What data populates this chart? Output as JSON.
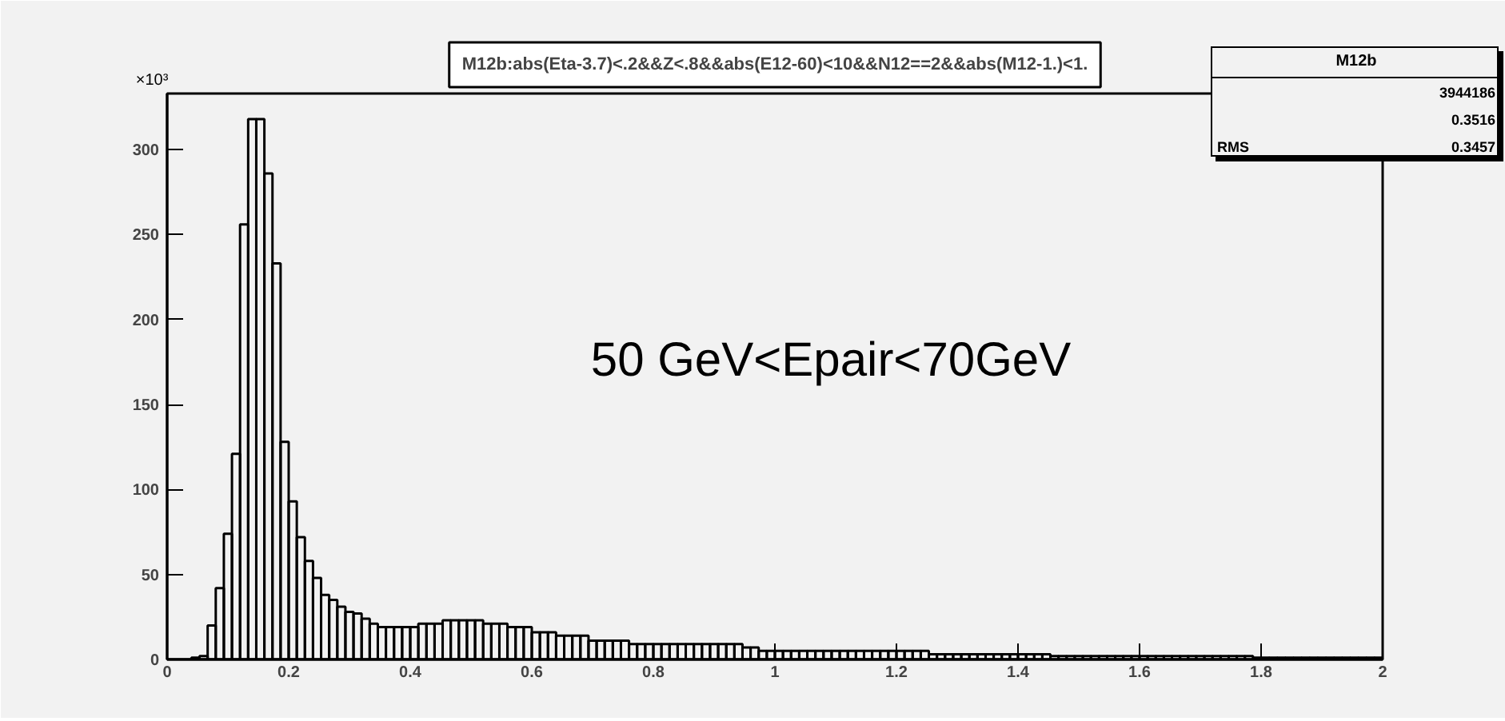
{
  "chart_data": {
    "type": "histogram",
    "title": "M12b:abs(Eta-3.7)<.2&&Z<.8&&abs(E12-60)<10&&N12==2&&abs(M12-1.)<1.",
    "bins": [
      0,
      0.01333,
      0.02667,
      0.04,
      0.05333,
      0.06667,
      0.08,
      0.09333,
      0.10667,
      0.12,
      0.13333,
      0.14667,
      0.16,
      0.17333,
      0.18667,
      0.2,
      0.21333,
      0.22667,
      0.24,
      0.25333,
      0.26667,
      0.28,
      0.29333,
      0.30667,
      0.32,
      0.33333,
      0.34667,
      0.36,
      0.37333,
      0.38667,
      0.4,
      0.41333,
      0.42667,
      0.44,
      0.45333,
      0.46667,
      0.48,
      0.49333,
      0.50667,
      0.52,
      0.53333,
      0.54667,
      0.56,
      0.57333,
      0.58667,
      0.6,
      0.61333,
      0.62667,
      0.64,
      0.65333,
      0.66667,
      0.68,
      0.69333,
      0.70667,
      0.72,
      0.73333,
      0.74667,
      0.76,
      0.77333,
      0.78667,
      0.8,
      0.81333,
      0.82667,
      0.84,
      0.85333,
      0.86667,
      0.88,
      0.89333,
      0.90667,
      0.92,
      0.93333,
      0.94667,
      0.96,
      0.97333,
      0.98667,
      1,
      1.01333,
      1.02667,
      1.04,
      1.05333,
      1.06667,
      1.08,
      1.09333,
      1.10667,
      1.12,
      1.13333,
      1.14667,
      1.16,
      1.17333,
      1.18667,
      1.2,
      1.21333,
      1.22667,
      1.24,
      1.25333,
      1.26667,
      1.28,
      1.29333,
      1.30667,
      1.32,
      1.33333,
      1.34667,
      1.36,
      1.37333,
      1.38667,
      1.4,
      1.41333,
      1.42667,
      1.44,
      1.45333,
      1.46667,
      1.48,
      1.49333,
      1.50667,
      1.52,
      1.53333,
      1.54667,
      1.56,
      1.57333,
      1.58667,
      1.6,
      1.61333,
      1.62667,
      1.64,
      1.65333,
      1.66667,
      1.68,
      1.69333,
      1.70667,
      1.72,
      1.73333,
      1.74667,
      1.76,
      1.77333,
      1.78667,
      1.8,
      1.81333,
      1.82667,
      1.84,
      1.85333,
      1.86667,
      1.88,
      1.89333,
      1.90667,
      1.92,
      1.93333,
      1.94667,
      1.96,
      1.97333,
      1.98667,
      2
    ],
    "values": [
      0,
      0,
      0,
      1,
      2,
      20,
      42,
      74,
      121,
      256,
      318,
      318,
      286,
      233,
      128,
      93,
      72,
      58,
      48,
      38,
      35,
      31,
      28,
      27,
      24,
      21,
      19,
      19,
      19,
      19,
      19,
      21,
      21,
      21,
      23,
      23,
      23,
      23,
      23,
      21,
      21,
      21,
      19,
      19,
      19,
      16,
      16,
      16,
      14,
      14,
      14,
      14,
      11,
      11,
      11,
      11,
      11,
      9,
      9,
      9,
      9,
      9,
      9,
      9,
      9,
      9,
      9,
      9,
      9,
      9,
      9,
      7,
      7,
      5,
      5,
      5,
      5,
      5,
      5,
      5,
      5,
      5,
      5,
      5,
      5,
      5,
      5,
      5,
      5,
      5,
      5,
      5,
      5,
      5,
      3,
      3,
      3,
      3,
      3,
      3,
      3,
      3,
      3,
      3,
      3,
      3,
      3,
      3,
      3,
      2,
      2,
      2,
      2,
      2,
      2,
      2,
      2,
      2,
      2,
      2,
      2,
      2,
      2,
      2,
      2,
      2,
      2,
      2,
      2,
      2,
      2,
      2,
      2,
      2,
      1,
      1,
      1,
      1,
      1,
      1,
      1,
      1,
      1,
      1,
      1,
      1,
      1,
      1,
      1,
      1
    ],
    "color": "#000000",
    "xlim": [
      0,
      2
    ],
    "xticks": [
      0,
      0.2,
      0.4,
      0.6,
      0.8,
      1,
      1.2,
      1.4,
      1.6,
      1.8,
      2
    ],
    "ylim": [
      0,
      333
    ],
    "yticks": [
      0,
      50,
      100,
      150,
      200,
      250,
      300
    ],
    "grid": false,
    "annotations": [
      "×10³",
      "M12b",
      "3944186",
      "0.3516",
      "RMS",
      "0.3457",
      "50 GeV<Epair<70GeV"
    ]
  }
}
